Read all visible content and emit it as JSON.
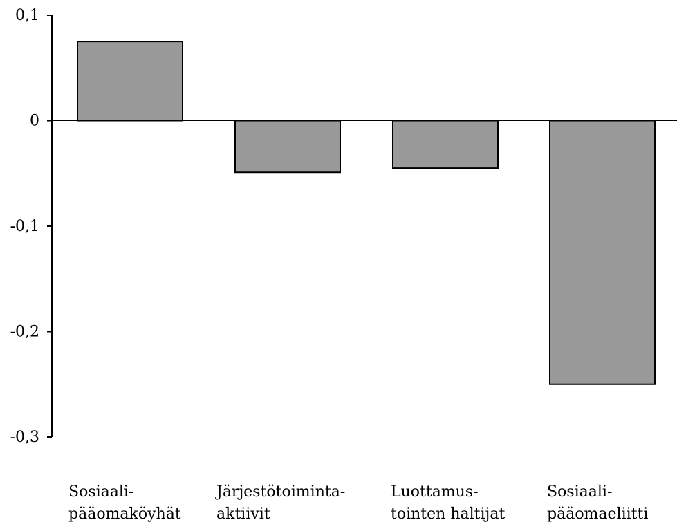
{
  "chart_data": {
    "type": "bar",
    "categories": [
      "Sosiaali-\npääomaköyhät",
      "Järjestötoiminta-\naktiivit",
      "Luottamus-\ntointen haltijat",
      "Sosiaali-\npääomaeliitti"
    ],
    "values": [
      0.075,
      -0.049,
      -0.045,
      -0.25
    ],
    "ylim": [
      -0.3,
      0.1
    ],
    "yticks": [
      0.1,
      0,
      -0.1,
      -0.2,
      -0.3
    ],
    "ytick_labels": [
      "0,1",
      "0",
      "-0,1",
      "-0,2",
      "-0,3"
    ],
    "bar_color": "#999999",
    "title": "",
    "xlabel": "",
    "ylabel": "",
    "grid": false,
    "legend": "none"
  }
}
